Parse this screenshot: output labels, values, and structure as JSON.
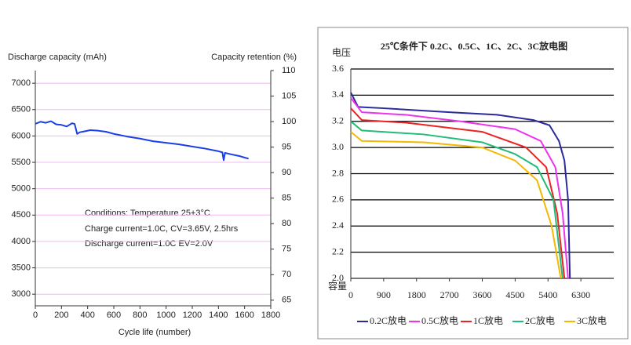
{
  "chart_data": [
    {
      "type": "line",
      "y_label": "Discharge capacity (mAh)",
      "y2_label": "Capacity retention (%)",
      "x_label": "Cycle life (number)",
      "annotations": [
        "Conditions: Temperature 25+3°C",
        "Charge current=1.0C, CV=3.65V, 2.5hrs",
        "Discharge current=1.0C EV=2.0V"
      ],
      "xlim": [
        0,
        1800
      ],
      "xticks": [
        0,
        200,
        400,
        600,
        800,
        1000,
        1200,
        1400,
        1600,
        1800
      ],
      "ylim": [
        2780,
        7240
      ],
      "yticks": [
        3000,
        3500,
        4000,
        4500,
        5000,
        5500,
        6000,
        6500,
        7000
      ],
      "y2lim": [
        63.9,
        110
      ],
      "y2ticks": [
        65,
        70,
        75,
        80,
        85,
        90,
        95,
        100,
        105,
        110
      ],
      "grid": true,
      "grid_color": "#f2b8f2",
      "series": [
        {
          "color": "#1a3ee8",
          "x": [
            0,
            40,
            80,
            120,
            160,
            200,
            240,
            280,
            300,
            320,
            340,
            380,
            420,
            480,
            540,
            600,
            700,
            800,
            900,
            1000,
            1100,
            1200,
            1300,
            1400,
            1430,
            1440,
            1450,
            1500,
            1560,
            1600,
            1630
          ],
          "values": [
            6230,
            6270,
            6250,
            6280,
            6220,
            6210,
            6180,
            6240,
            6230,
            6040,
            6070,
            6090,
            6110,
            6100,
            6080,
            6040,
            5990,
            5950,
            5900,
            5870,
            5840,
            5800,
            5760,
            5710,
            5690,
            5540,
            5680,
            5650,
            5620,
            5590,
            5570
          ]
        }
      ]
    },
    {
      "type": "line",
      "title": "25℃条件下 0.2C、0.5C、1C、2C、3C放电图",
      "y_label": "电压",
      "x_label": "容量",
      "xlim": [
        0,
        7200
      ],
      "xticks": [
        0,
        900,
        1800,
        2700,
        3600,
        4500,
        5400,
        6300
      ],
      "ylim": [
        2,
        3.6
      ],
      "yticks": [
        {
          "value": 2,
          "label": "2.0"
        },
        2.2,
        2.4,
        2.6,
        2.8,
        {
          "value": 3,
          "label": "3.0"
        },
        3.2,
        3.4,
        3.6
      ],
      "grid": true,
      "grid_color": "#000000",
      "series": [
        {
          "name": "0.2C放电",
          "color": "#2a2aa0",
          "x": [
            0,
            200,
            900,
            2700,
            4000,
            5000,
            5440,
            5700,
            5850,
            5950,
            6000
          ],
          "values": [
            3.42,
            3.31,
            3.3,
            3.27,
            3.25,
            3.21,
            3.17,
            3.05,
            2.9,
            2.6,
            2
          ]
        },
        {
          "name": "0.5C放电",
          "color": "#ee33ee",
          "x": [
            0,
            300,
            1500,
            3000,
            4500,
            5200,
            5600,
            5800,
            5950
          ],
          "values": [
            3.38,
            3.27,
            3.25,
            3.2,
            3.14,
            3.05,
            2.85,
            2.5,
            2
          ]
        },
        {
          "name": "1C放电",
          "color": "#ee2222",
          "x": [
            0,
            300,
            1500,
            3600,
            4800,
            5350,
            5650,
            5850
          ],
          "values": [
            3.3,
            3.21,
            3.19,
            3.12,
            3,
            2.85,
            2.5,
            2
          ]
        },
        {
          "name": "2C放电",
          "color": "#22bb77",
          "x": [
            0,
            300,
            2000,
            3600,
            4500,
            5100,
            5550,
            5800
          ],
          "values": [
            3.2,
            3.13,
            3.1,
            3.04,
            2.95,
            2.85,
            2.6,
            2
          ]
        },
        {
          "name": "3C放电",
          "color": "#f5b800",
          "x": [
            0,
            300,
            2000,
            3600,
            4500,
            5100,
            5500,
            5750
          ],
          "values": [
            3.12,
            3.05,
            3.04,
            3,
            2.9,
            2.75,
            2.4,
            2
          ]
        }
      ]
    }
  ]
}
